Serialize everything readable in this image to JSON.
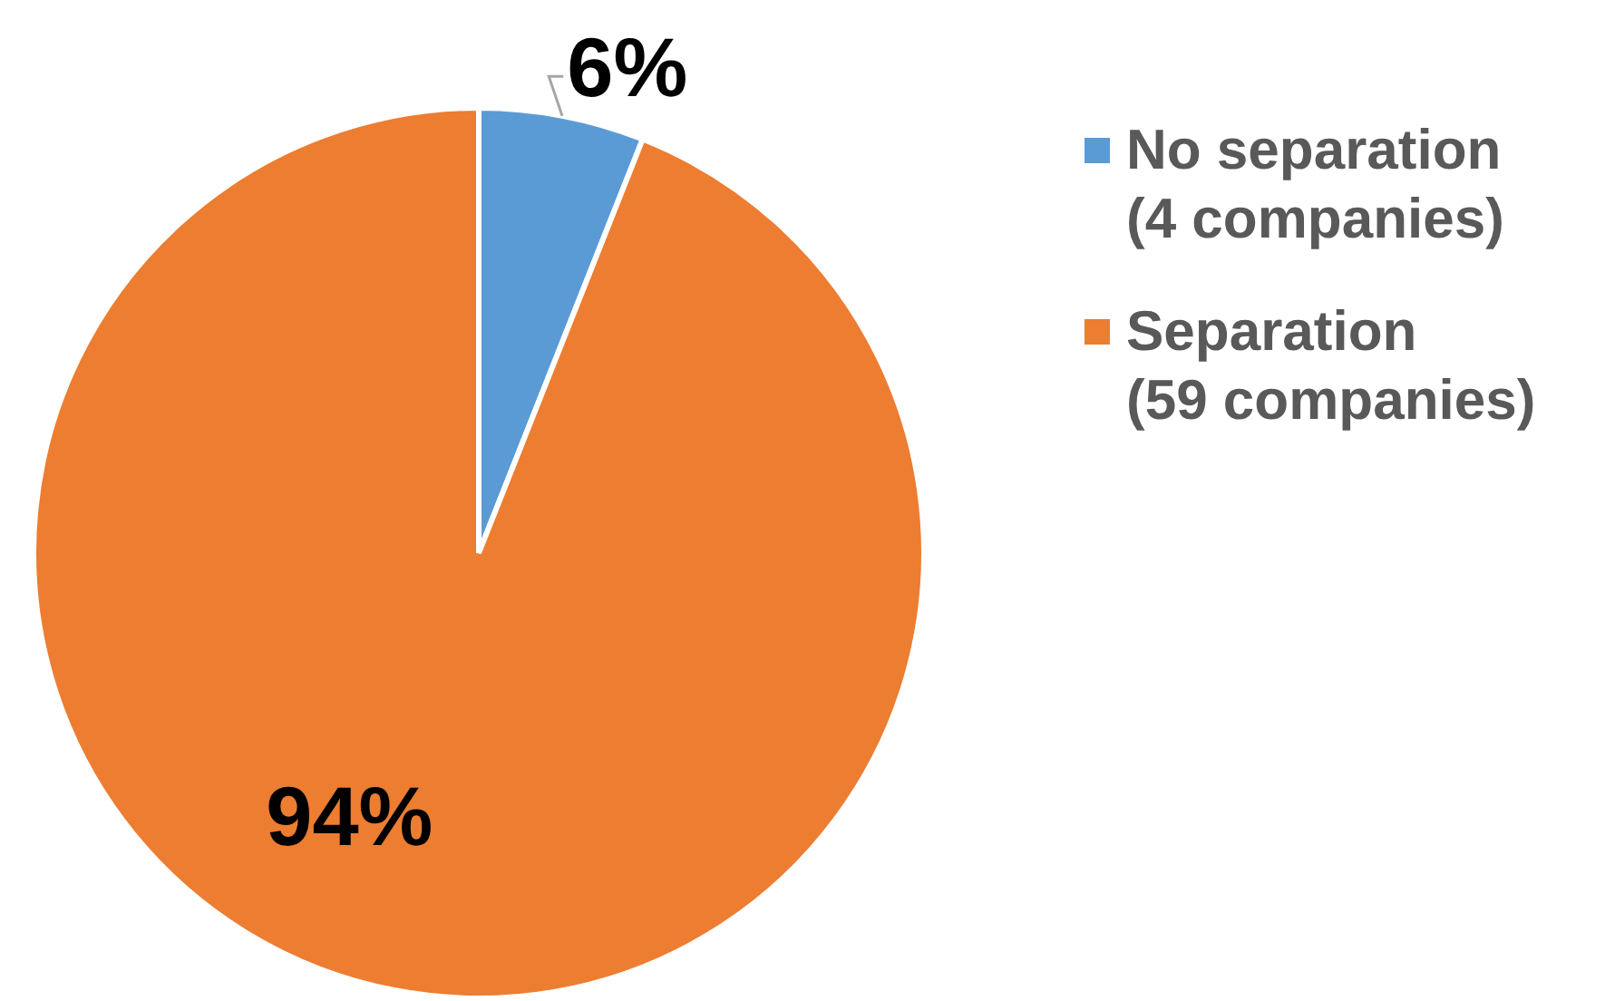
{
  "chart_data": {
    "type": "pie",
    "categories": [
      "No separation (4 companies)",
      "Separation (59 companies)"
    ],
    "values": [
      6,
      94
    ],
    "colors": [
      "#5b9bd5",
      "#ed7d31"
    ],
    "value_labels": [
      "6%",
      "94%"
    ],
    "legend": "right"
  }
}
